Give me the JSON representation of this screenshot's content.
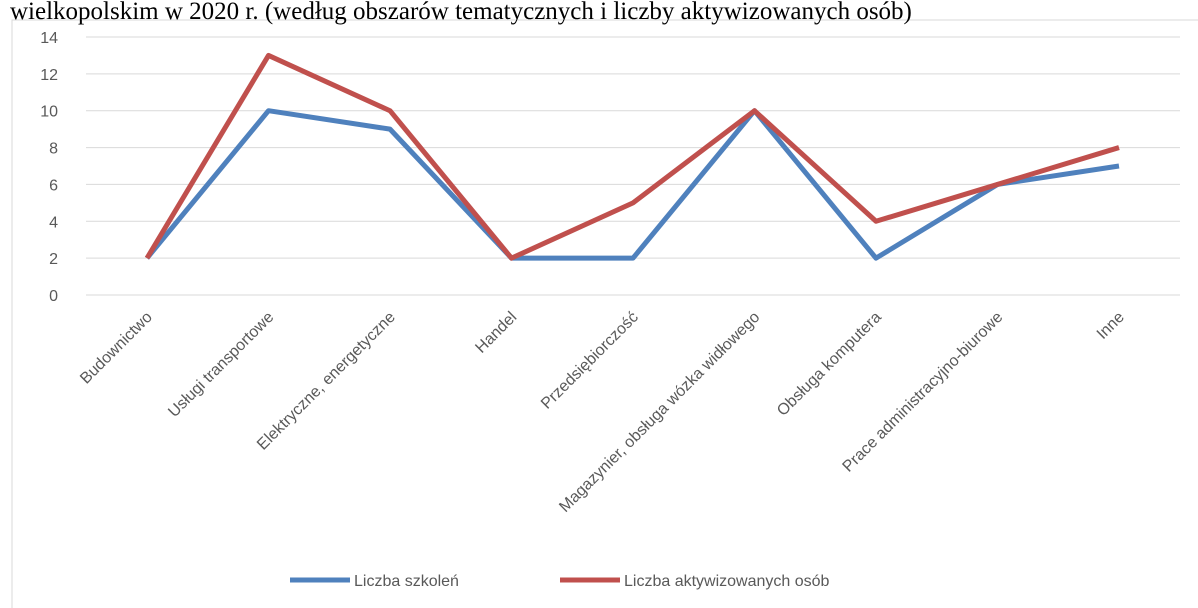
{
  "chart_data": {
    "type": "line",
    "title": "wielkopolskim w 2020 r. (według obszarów tematycznych i liczby aktywizowanych osób)",
    "categories": [
      "Budownictwo",
      "Usługi transportowe",
      "Elektryczne, energetyczne",
      "Handel",
      "Przedsiębiorczość",
      "Magazynier, obsługa wózka widłowego",
      "Obsługa komputera",
      "Prace administracyjno-biurowe",
      "Inne"
    ],
    "series": [
      {
        "name": "Liczba szkoleń",
        "color": "#4f81bd",
        "values": [
          2,
          10,
          9,
          2,
          2,
          10,
          2,
          6,
          7
        ]
      },
      {
        "name": "Liczba aktywizowanych osób",
        "color": "#c0504d",
        "values": [
          2,
          13,
          10,
          2,
          5,
          10,
          4,
          6,
          8
        ]
      }
    ],
    "ylim": [
      0,
      14
    ],
    "yticks": [
      0,
      2,
      4,
      6,
      8,
      10,
      12,
      14
    ],
    "grid": true,
    "legend": "bottom"
  }
}
